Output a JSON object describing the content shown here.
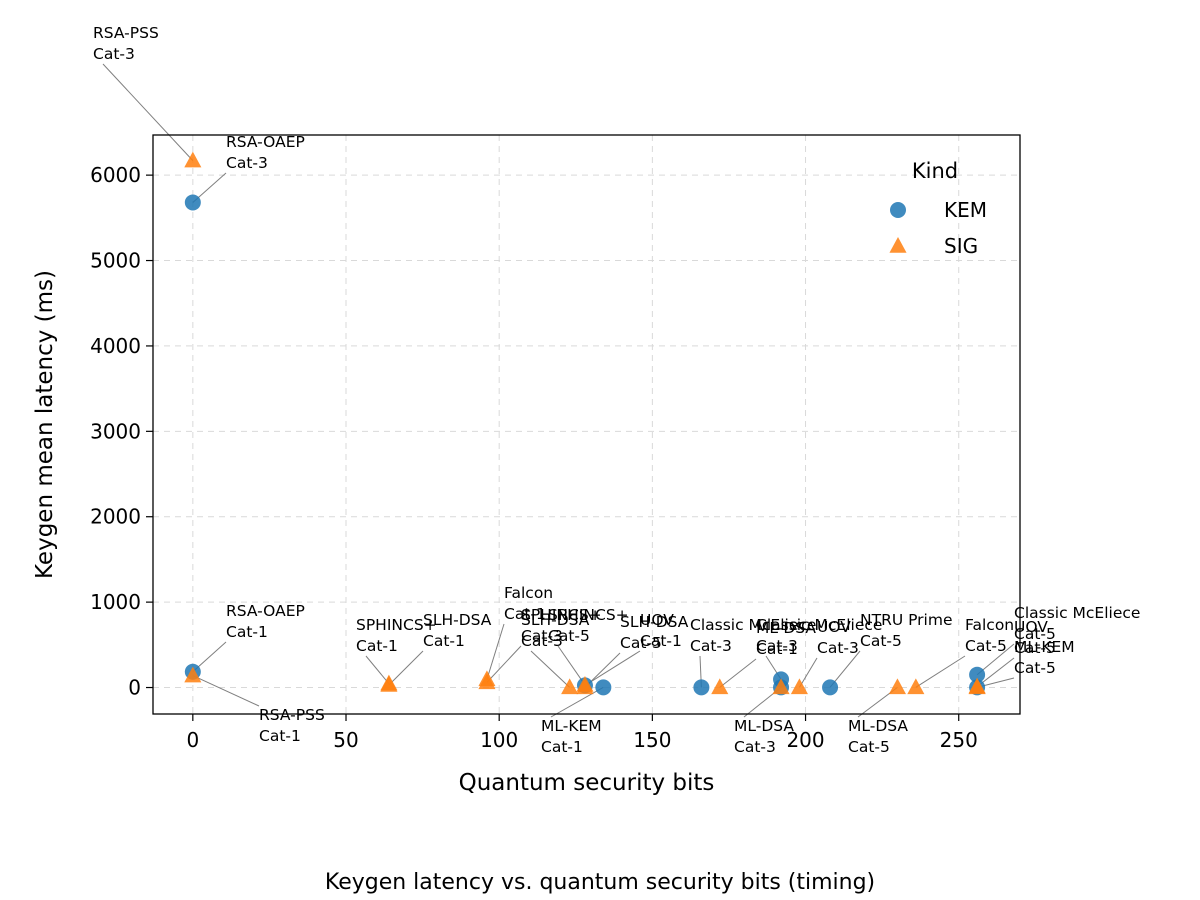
{
  "chart_data": {
    "type": "scatter",
    "caption": "Keygen latency vs. quantum security bits (timing)",
    "xlabel": "Quantum security bits",
    "ylabel": "Keygen mean latency (ms)",
    "xlim": [
      -13,
      270
    ],
    "ylim": [
      -310,
      6470
    ],
    "xticks": [
      0,
      50,
      100,
      150,
      200,
      250
    ],
    "yticks": [
      0,
      1000,
      2000,
      3000,
      4000,
      5000,
      6000
    ],
    "grid": true,
    "legend": {
      "title": "Kind",
      "placement": "top-right"
    },
    "series": [
      {
        "name": "KEM",
        "marker": "circle",
        "color": "#1f77b4",
        "points": [
          {
            "x": 0,
            "y": 5680
          },
          {
            "x": 0,
            "y": 185
          },
          {
            "x": 128,
            "y": 25
          },
          {
            "x": 134,
            "y": 2
          },
          {
            "x": 166,
            "y": 2
          },
          {
            "x": 192,
            "y": 95
          },
          {
            "x": 192,
            "y": 2
          },
          {
            "x": 208,
            "y": 2
          },
          {
            "x": 256,
            "y": 150
          },
          {
            "x": 256,
            "y": 2
          }
        ]
      },
      {
        "name": "SIG",
        "marker": "triangle",
        "color": "#ff7f0e",
        "points": [
          {
            "x": 0,
            "y": 6170
          },
          {
            "x": 0,
            "y": 140
          },
          {
            "x": 64,
            "y": 45
          },
          {
            "x": 64,
            "y": 30
          },
          {
            "x": 96,
            "y": 95
          },
          {
            "x": 96,
            "y": 60
          },
          {
            "x": 123,
            "y": 2
          },
          {
            "x": 128,
            "y": 30
          },
          {
            "x": 128,
            "y": 2
          },
          {
            "x": 172,
            "y": 2
          },
          {
            "x": 192,
            "y": 2
          },
          {
            "x": 198,
            "y": 2
          },
          {
            "x": 230,
            "y": 2
          },
          {
            "x": 236,
            "y": 2
          },
          {
            "x": 256,
            "y": 10
          },
          {
            "x": 256,
            "y": 2
          }
        ]
      }
    ],
    "annotations": [
      {
        "lines": [
          "RSA-PSS",
          "Cat-3"
        ],
        "x": 0,
        "y": 6170
      },
      {
        "lines": [
          "RSA-OAEP",
          "Cat-3"
        ],
        "x": 0,
        "y": 5680
      },
      {
        "lines": [
          "RSA-OAEP",
          "Cat-1"
        ],
        "x": 0,
        "y": 185
      },
      {
        "lines": [
          "RSA-PSS",
          "Cat-1"
        ],
        "x": 0,
        "y": 140
      },
      {
        "lines": [
          "SPHINCS+",
          "Cat-1"
        ],
        "x": 64,
        "y": 45
      },
      {
        "lines": [
          "SLH-DSA",
          "Cat-1"
        ],
        "x": 64,
        "y": 30
      },
      {
        "lines": [
          "Falcon",
          "Cat-1"
        ],
        "x": 96,
        "y": 95
      },
      {
        "lines": [
          "SPHINCS+",
          "Cat-3"
        ],
        "x": 96,
        "y": 60
      },
      {
        "lines": [
          "SLH-DSA",
          "Cat-3"
        ],
        "x": 123,
        "y": 2
      },
      {
        "lines": [
          "SPHINCS+",
          "Cat-5"
        ],
        "x": 128,
        "y": 30
      },
      {
        "lines": [
          "SLH-DSA",
          "Cat-5"
        ],
        "x": 128,
        "y": 2
      },
      {
        "lines": [
          "UOV",
          "Cat-1"
        ],
        "x": 128,
        "y": 25
      },
      {
        "lines": [
          "ML-KEM",
          "Cat-1"
        ],
        "x": 134,
        "y": 2
      },
      {
        "lines": [
          "Classic McEliece",
          "Cat-3"
        ],
        "x": 166,
        "y": 2
      },
      {
        "lines": [
          "ML-DSA",
          "Cat-1"
        ],
        "x": 172,
        "y": 2
      },
      {
        "lines": [
          "ML-DSA",
          "Cat-3"
        ],
        "x": 192,
        "y": 2
      },
      {
        "lines": [
          "Classic McEliece",
          "Cat-3"
        ],
        "x": 192,
        "y": 95
      },
      {
        "lines": [
          "UOV",
          "Cat-3"
        ],
        "x": 198,
        "y": 2
      },
      {
        "lines": [
          "NTRU Prime",
          "Cat-5"
        ],
        "x": 208,
        "y": 2
      },
      {
        "lines": [
          "ML-DSA",
          "Cat-5"
        ],
        "x": 230,
        "y": 2
      },
      {
        "lines": [
          "Falcon",
          "Cat-5"
        ],
        "x": 236,
        "y": 2
      },
      {
        "lines": [
          "Classic McEliece",
          "Cat-5"
        ],
        "x": 256,
        "y": 150
      },
      {
        "lines": [
          "UOV",
          "Cat-5"
        ],
        "x": 256,
        "y": 10
      },
      {
        "lines": [
          "ML-KEM",
          "Cat-5"
        ],
        "x": 256,
        "y": 2
      }
    ]
  }
}
